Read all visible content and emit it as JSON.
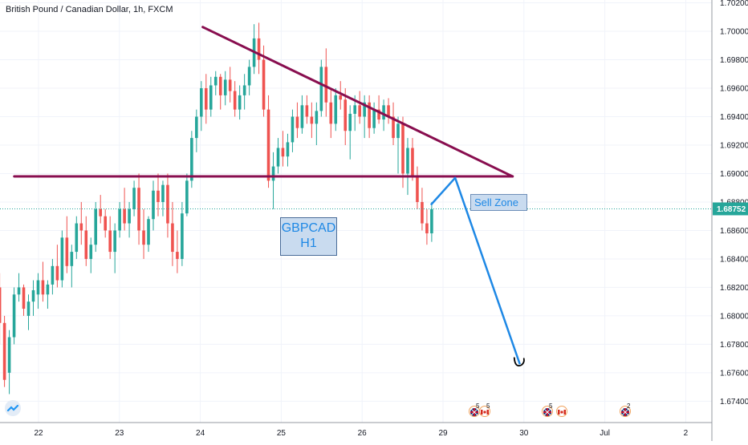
{
  "header": {
    "title": "British Pound / Canadian Dollar, 1h, FXCM"
  },
  "last_price_label": "1.68752",
  "notes": {
    "sell_zone": "Sell Zone",
    "symbol_line1": "GBPCAD",
    "symbol_line2": "H1"
  },
  "events": [
    {
      "flag": "uk-flag-icon",
      "count": "5"
    },
    {
      "flag": "canada-flag-icon",
      "count": "5"
    },
    {
      "flag": "uk-flag-icon",
      "count": "5"
    },
    {
      "flag": "canada-flag-icon",
      "count": ""
    },
    {
      "flag": "uk-flag-icon",
      "count": "2"
    }
  ],
  "colors": {
    "up": "#26a69a",
    "down": "#ef5350",
    "trendline": "#880e4f",
    "projection": "#1e88e5",
    "last_price": "#26a69a",
    "note_bg": "#c9dbef"
  },
  "chart_data": {
    "type": "candlestick",
    "title": "British Pound / Canadian Dollar, 1h, FXCM",
    "x_axis": {
      "tick_labels": [
        "22",
        "23",
        "24",
        "25",
        "26",
        "29",
        "30",
        "Jul",
        "2"
      ],
      "tick_positions_days": [
        0,
        1,
        2,
        3,
        4,
        5,
        6,
        7,
        8
      ]
    },
    "y_axis": {
      "range": [
        1.6725,
        1.7022
      ],
      "ticks": [
        "1.67400",
        "1.67600",
        "1.67800",
        "1.68000",
        "1.68200",
        "1.68400",
        "1.68600",
        "1.68800",
        "1.69000",
        "1.69200",
        "1.69400",
        "1.69600",
        "1.69800",
        "1.70000",
        "1.70200"
      ]
    },
    "last_price": 1.68752,
    "lines": {
      "horizontal_support": {
        "from": [
          -0.3,
          1.6898
        ],
        "to": [
          5.86,
          1.6898
        ]
      },
      "descending_trendline": {
        "from": [
          2.03,
          1.7003
        ],
        "to": [
          5.86,
          1.6898
        ]
      },
      "projection_path": [
        [
          4.85,
          1.6878
        ],
        [
          5.15,
          1.6897
        ],
        [
          5.95,
          1.6766
        ]
      ]
    },
    "candles": [
      [
        1.682,
        1.683,
        1.678,
        1.6795
      ],
      [
        1.6795,
        1.68,
        1.675,
        1.6755
      ],
      [
        1.676,
        1.679,
        1.6745,
        1.6785
      ],
      [
        1.6785,
        1.682,
        1.678,
        1.6815
      ],
      [
        1.6815,
        1.683,
        1.681,
        1.682
      ],
      [
        1.682,
        1.6822,
        1.68,
        1.6805
      ],
      [
        1.68,
        1.6815,
        1.679,
        1.681
      ],
      [
        1.681,
        1.6825,
        1.68,
        1.6818
      ],
      [
        1.6815,
        1.683,
        1.6805,
        1.6825
      ],
      [
        1.6825,
        1.6838,
        1.681,
        1.6815
      ],
      [
        1.6815,
        1.6825,
        1.6805,
        1.6822
      ],
      [
        1.6822,
        1.684,
        1.6815,
        1.6835
      ],
      [
        1.6835,
        1.685,
        1.682,
        1.6825
      ],
      [
        1.6825,
        1.686,
        1.682,
        1.6855
      ],
      [
        1.6855,
        1.687,
        1.683,
        1.6835
      ],
      [
        1.6835,
        1.685,
        1.682,
        1.6845
      ],
      [
        1.6845,
        1.687,
        1.684,
        1.6865
      ],
      [
        1.6865,
        1.688,
        1.685,
        1.686
      ],
      [
        1.686,
        1.687,
        1.6835,
        1.684
      ],
      [
        1.684,
        1.6855,
        1.683,
        1.685
      ],
      [
        1.685,
        1.688,
        1.6845,
        1.6875
      ],
      [
        1.6875,
        1.6885,
        1.6865,
        1.687
      ],
      [
        1.687,
        1.6875,
        1.6855,
        1.686
      ],
      [
        1.686,
        1.687,
        1.684,
        1.6845
      ],
      [
        1.6845,
        1.6865,
        1.683,
        1.686
      ],
      [
        1.686,
        1.688,
        1.6855,
        1.6875
      ],
      [
        1.6875,
        1.689,
        1.686,
        1.6865
      ],
      [
        1.6865,
        1.688,
        1.6855,
        1.6875
      ],
      [
        1.6875,
        1.6895,
        1.687,
        1.689
      ],
      [
        1.689,
        1.69,
        1.685,
        1.686
      ],
      [
        1.686,
        1.6875,
        1.684,
        1.685
      ],
      [
        1.685,
        1.687,
        1.6845,
        1.6868
      ],
      [
        1.6868,
        1.6895,
        1.686,
        1.6888
      ],
      [
        1.6888,
        1.69,
        1.687,
        1.688
      ],
      [
        1.688,
        1.6895,
        1.687,
        1.6892
      ],
      [
        1.6892,
        1.69,
        1.6855,
        1.6865
      ],
      [
        1.6865,
        1.688,
        1.6835,
        1.6845
      ],
      [
        1.6845,
        1.686,
        1.683,
        1.684
      ],
      [
        1.684,
        1.688,
        1.6835,
        1.6872
      ],
      [
        1.6872,
        1.69,
        1.687,
        1.6895
      ],
      [
        1.6895,
        1.693,
        1.689,
        1.6925
      ],
      [
        1.6925,
        1.6945,
        1.6915,
        1.694
      ],
      [
        1.694,
        1.6965,
        1.693,
        1.696
      ],
      [
        1.696,
        1.697,
        1.6935,
        1.6945
      ],
      [
        1.6945,
        1.6968,
        1.694,
        1.6962
      ],
      [
        1.6962,
        1.6972,
        1.6955,
        1.6968
      ],
      [
        1.6968,
        1.697,
        1.6945,
        1.6955
      ],
      [
        1.6955,
        1.6972,
        1.6948,
        1.6966
      ],
      [
        1.6966,
        1.6975,
        1.695,
        1.6958
      ],
      [
        1.6958,
        1.6965,
        1.694,
        1.6945
      ],
      [
        1.6945,
        1.6962,
        1.6938,
        1.6955
      ],
      [
        1.6955,
        1.697,
        1.6945,
        1.6962
      ],
      [
        1.6962,
        1.698,
        1.6955,
        1.6975
      ],
      [
        1.6975,
        1.7005,
        1.697,
        1.6995
      ],
      [
        1.6995,
        1.7006,
        1.697,
        1.698
      ],
      [
        1.698,
        1.699,
        1.694,
        1.6945
      ],
      [
        1.6945,
        1.6955,
        1.689,
        1.6895
      ],
      [
        1.6895,
        1.6915,
        1.6875,
        1.6905
      ],
      [
        1.6905,
        1.6925,
        1.69,
        1.6918
      ],
      [
        1.6918,
        1.693,
        1.6905,
        1.6912
      ],
      [
        1.6912,
        1.6928,
        1.6905,
        1.6922
      ],
      [
        1.6922,
        1.6945,
        1.6915,
        1.694
      ],
      [
        1.694,
        1.695,
        1.6925,
        1.6932
      ],
      [
        1.6932,
        1.6955,
        1.6928,
        1.6948
      ],
      [
        1.6948,
        1.6955,
        1.6935,
        1.694
      ],
      [
        1.694,
        1.695,
        1.6925,
        1.6935
      ],
      [
        1.6935,
        1.695,
        1.692,
        1.6944
      ],
      [
        1.6944,
        1.698,
        1.694,
        1.6975
      ],
      [
        1.6975,
        1.6988,
        1.694,
        1.695
      ],
      [
        1.695,
        1.696,
        1.6925,
        1.6935
      ],
      [
        1.6935,
        1.696,
        1.693,
        1.6955
      ],
      [
        1.6955,
        1.6965,
        1.6945,
        1.6952
      ],
      [
        1.6952,
        1.696,
        1.692,
        1.693
      ],
      [
        1.693,
        1.6948,
        1.691,
        1.6942
      ],
      [
        1.6942,
        1.6955,
        1.693,
        1.6948
      ],
      [
        1.6948,
        1.6958,
        1.6935,
        1.694
      ],
      [
        1.694,
        1.6955,
        1.6925,
        1.695
      ],
      [
        1.695,
        1.6955,
        1.6925,
        1.6932
      ],
      [
        1.6932,
        1.695,
        1.6928,
        1.6945
      ],
      [
        1.6945,
        1.6955,
        1.6935,
        1.6938
      ],
      [
        1.6938,
        1.6952,
        1.693,
        1.6948
      ],
      [
        1.6948,
        1.6953,
        1.6935,
        1.694
      ],
      [
        1.694,
        1.695,
        1.692,
        1.6925
      ],
      [
        1.6925,
        1.694,
        1.69,
        1.6935
      ],
      [
        1.6935,
        1.694,
        1.689,
        1.69
      ],
      [
        1.69,
        1.6925,
        1.6885,
        1.6918
      ],
      [
        1.6918,
        1.6925,
        1.6895,
        1.6898
      ],
      [
        1.6898,
        1.6905,
        1.6875,
        1.688
      ],
      [
        1.688,
        1.689,
        1.686,
        1.6865
      ],
      [
        1.6865,
        1.6875,
        1.685,
        1.6858
      ],
      [
        1.6858,
        1.688,
        1.6852,
        1.6875
      ]
    ]
  }
}
